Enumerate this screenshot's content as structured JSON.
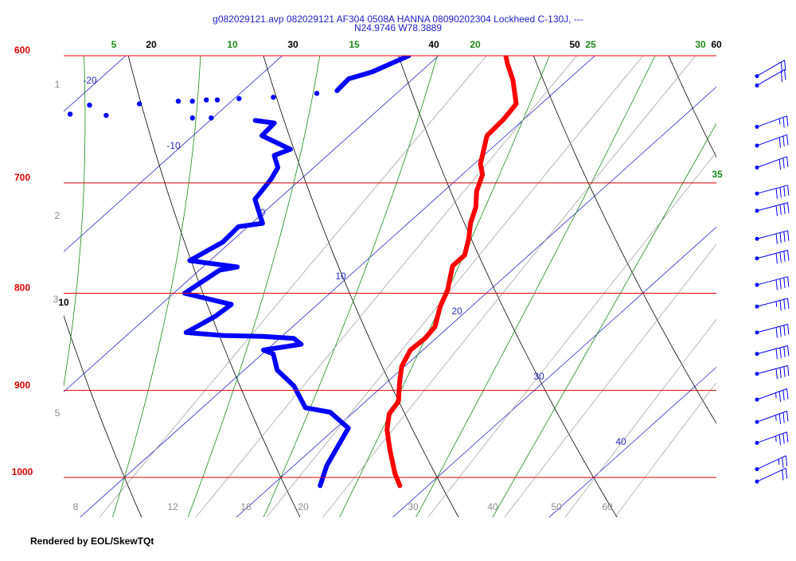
{
  "chart_data": {
    "type": "skewt",
    "title": "g082029121.avp 082029121 AF304 0508A HANNA 08090202304 Lockheed C-130J, ---",
    "subtitle": "N24.9746 W78.3889",
    "footer": "Rendered by EOL/SkewTQt",
    "ylim": [
      1000,
      600
    ],
    "yticks": [
      600,
      700,
      800,
      900,
      1000
    ],
    "log_y": true,
    "isobar_color": "#e00000",
    "isotherms": {
      "color": "#2a2acc",
      "values": [
        -20,
        -10,
        0,
        10,
        20,
        30,
        40
      ]
    },
    "dry_adiabats": {
      "color": "#000000",
      "values": [
        10,
        20,
        30,
        40,
        50,
        60
      ]
    },
    "moist_adiabats": {
      "color": "#1a8a1a",
      "values": [
        5,
        10,
        15,
        20,
        25,
        30,
        35
      ]
    },
    "mixing_ratios": {
      "color": "#8c8c8c",
      "values": [
        8,
        12,
        16,
        20,
        30,
        40,
        50,
        60
      ]
    },
    "heights": {
      "color": "#888888",
      "values": [
        1,
        2,
        3,
        5
      ]
    },
    "series": [
      {
        "color": "#ff0000",
        "pressure": [
          1010,
          995,
          967,
          944,
          926,
          912,
          891,
          874,
          857,
          845,
          833,
          813,
          797,
          774,
          764,
          749,
          735,
          721,
          707,
          693,
          684,
          661,
          648,
          636,
          618,
          606,
          600
        ],
        "values": [
          28.2,
          27.0,
          25.0,
          23.4,
          22.4,
          22.1,
          20.8,
          19.8,
          19.2,
          19.3,
          19.1,
          18.0,
          17.3,
          15.9,
          15.9,
          15.0,
          14.0,
          13.2,
          12.1,
          11.3,
          10.4,
          8.8,
          8.7,
          8.4,
          6.5,
          5.0,
          4.3
        ]
      },
      {
        "color": "#0000ff",
        "pressure": [
          1010,
          986,
          942,
          924,
          919,
          895,
          878,
          861,
          857,
          851,
          845,
          843,
          842,
          839,
          823,
          811,
          800,
          778,
          775,
          769,
          752,
          738,
          735,
          714,
          697,
          687,
          677,
          672,
          661,
          651,
          649,
          null,
          645,
          null,
          644,
          null,
          637,
          null,
          636,
          null,
          634,
          null,
          634,
          null,
          633,
          null,
          633,
          null,
          632,
          null,
          647,
          null,
          647,
          null,
          631,
          null,
          628,
          null,
          626,
          617,
          612,
          600
        ],
        "values": [
          23.1,
          22.1,
          20.8,
          18.5,
          16.6,
          14.3,
          12.1,
          10.7,
          9.8,
          11.8,
          10.9,
          8.8,
          6.2,
          3.6,
          4.3,
          4.5,
          0.7,
          1.3,
          2.2,
          -1.3,
          -0.5,
          -0.6,
          0.7,
          -1.5,
          -1.9,
          -2.3,
          -3.4,
          -2.8,
          -5.6,
          -5.7,
          -7.1,
          null,
          -17.0,
          null,
          -19.4,
          null,
          -18.8,
          null,
          -15.7,
          null,
          -13.4,
          null,
          -12.5,
          null,
          -11.7,
          null,
          -11.0,
          null,
          -9.7,
          null,
          -11.3,
          null,
          -10.1,
          null,
          -7.6,
          null,
          -5.1,
          null,
          -4.0,
          -4.1,
          -3.1,
          -1.9
        ]
      }
    ],
    "wind": {
      "color": "#0000ff",
      "pressure": [
        615,
        622,
        654,
        669,
        687,
        709,
        724,
        749,
        767,
        792,
        813,
        839,
        861,
        882,
        910,
        935,
        959,
        990,
        1005
      ],
      "speed": [
        20,
        20,
        25,
        30,
        30,
        40,
        40,
        40,
        40,
        40,
        35,
        40,
        40,
        40,
        35,
        35,
        35,
        25,
        20
      ],
      "direction": [
        60,
        60,
        70,
        70,
        70,
        75,
        75,
        75,
        75,
        75,
        75,
        75,
        75,
        75,
        70,
        70,
        70,
        65,
        65
      ]
    }
  }
}
